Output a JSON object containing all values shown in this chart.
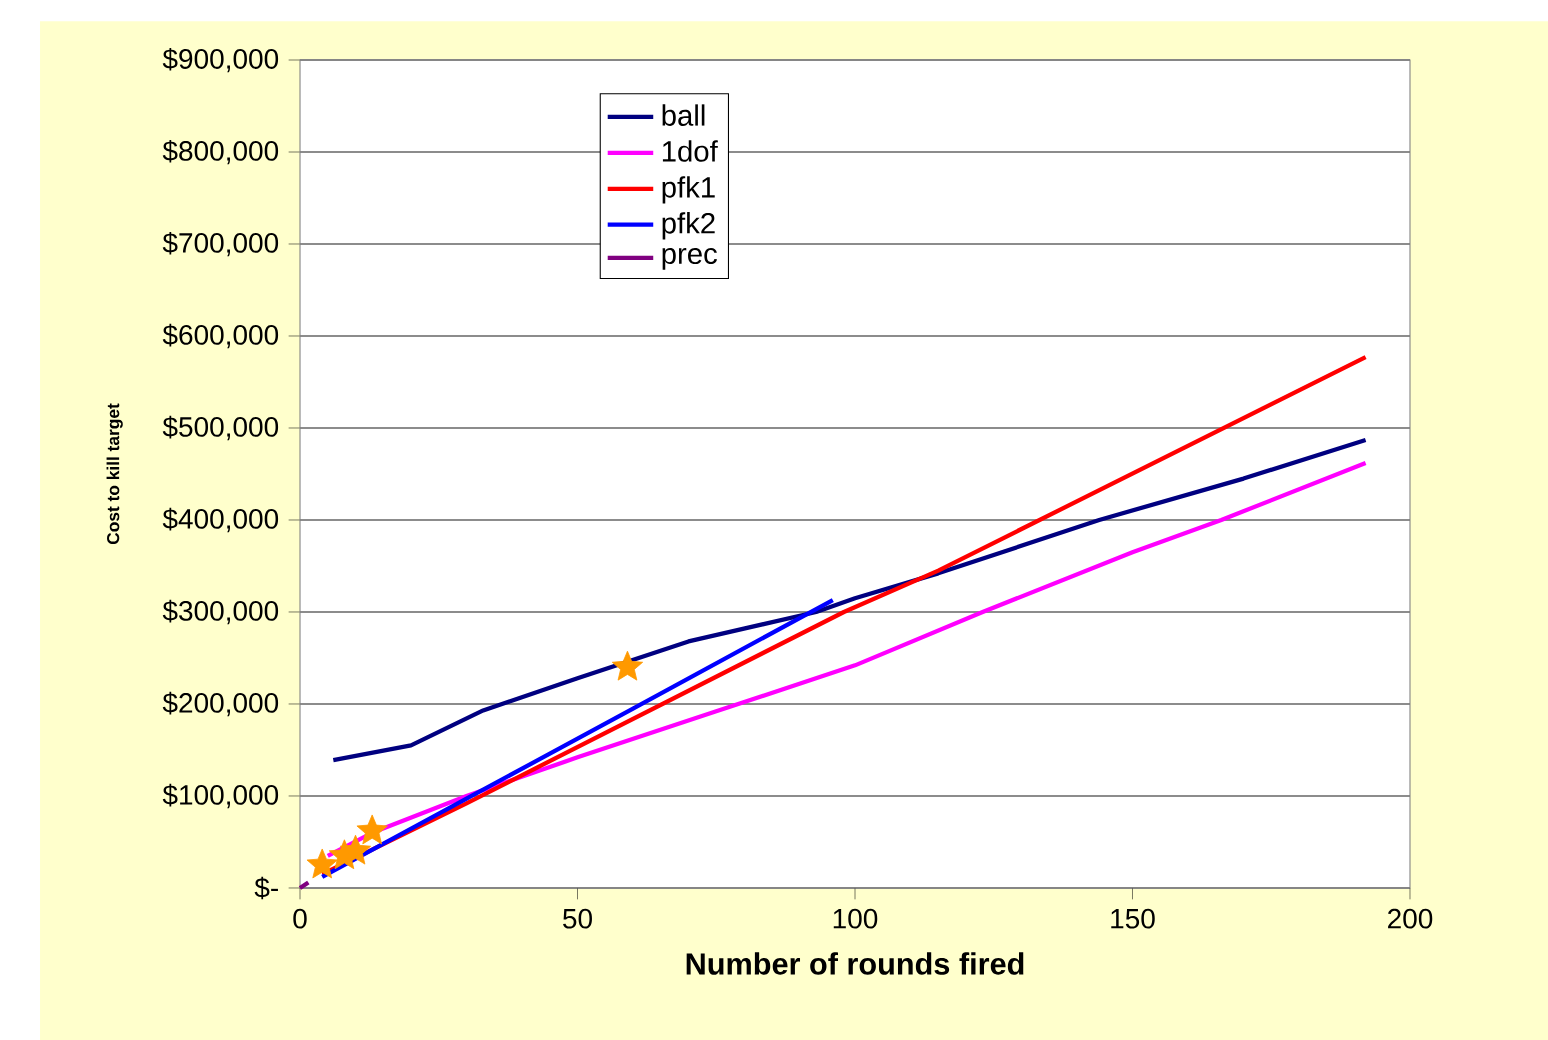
{
  "chart_data": {
    "type": "line",
    "xlabel": "Number of rounds fired",
    "ylabel": "Cost to kill target",
    "xlim": [
      0,
      200
    ],
    "xticks": [
      0,
      50,
      100,
      150,
      200
    ],
    "ylim": [
      0,
      900000
    ],
    "yticks": [
      {
        "value": 0,
        "label": "$-"
      },
      {
        "value": 100000,
        "label": "$100,000"
      },
      {
        "value": 200000,
        "label": "$200,000"
      },
      {
        "value": 300000,
        "label": "$300,000"
      },
      {
        "value": 400000,
        "label": "$400,000"
      },
      {
        "value": 500000,
        "label": "$500,000"
      },
      {
        "value": 600000,
        "label": "$600,000"
      },
      {
        "value": 700000,
        "label": "$700,000"
      },
      {
        "value": 800000,
        "label": "$800,000"
      },
      {
        "value": 900000,
        "label": "$900,000"
      }
    ],
    "grid": "y",
    "legend": "top left",
    "marker": "none",
    "line_style": "solid",
    "series": [
      {
        "name": "ball",
        "color": "#000080",
        "x": [
          6,
          20,
          33,
          50,
          70,
          93,
          100,
          115,
          144,
          170,
          192
        ],
        "values": [
          139000,
          155000,
          193000,
          228000,
          268000,
          300000,
          315000,
          342000,
          400000,
          445000,
          487000
        ]
      },
      {
        "name": "1dof",
        "color": "#ff00ff",
        "x": [
          5,
          13,
          30,
          50,
          75,
          100,
          123,
          150,
          166,
          192
        ],
        "values": [
          35000,
          60000,
          100000,
          142000,
          192000,
          242000,
          300000,
          365000,
          400000,
          462000
        ]
      },
      {
        "name": "pfk1",
        "color": "#ff0000",
        "x": [
          4,
          30,
          98,
          115,
          192
        ],
        "values": [
          15000,
          92000,
          300000,
          345000,
          577000
        ]
      },
      {
        "name": "pfk2",
        "color": "#0000ff",
        "x": [
          4,
          30,
          60,
          96
        ],
        "values": [
          12000,
          97000,
          195000,
          313000
        ]
      },
      {
        "name": "prec",
        "color": "#800080",
        "x": [
          0,
          1.5
        ],
        "values": [
          0,
          6000
        ]
      },
      {
        "type": "scatter",
        "marker": "star",
        "color": "#ff9900",
        "x": [
          4,
          8,
          10,
          13,
          59
        ],
        "values": [
          25000,
          35000,
          40000,
          62000,
          240000
        ]
      }
    ]
  }
}
